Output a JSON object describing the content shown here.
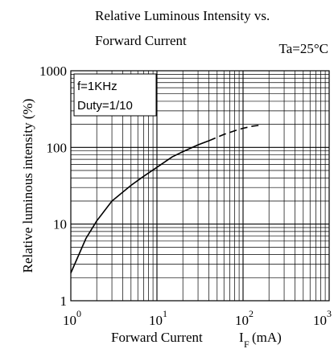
{
  "chart_data": {
    "type": "line",
    "title_line1": "Relative Luminous Intensity  vs.",
    "title_line2": "Forward Current",
    "condition": "Ta=25°C",
    "note_frequency": "f=1KHz",
    "note_duty": "Duty=1/10",
    "ylabel": "Relative luminous intensity (%)",
    "xlabel": "Forward Current",
    "xlabel_symbol": "I",
    "xlabel_subscript": "F",
    "xlabel_unit": "(mA)",
    "x_scale": "log",
    "y_scale": "log",
    "xlim": [
      1,
      1000
    ],
    "ylim": [
      1,
      1000
    ],
    "grid": true,
    "x_ticks": [
      {
        "value": 1,
        "base": "10",
        "exp": "0"
      },
      {
        "value": 10,
        "base": "10",
        "exp": "1"
      },
      {
        "value": 100,
        "base": "10",
        "exp": "2"
      },
      {
        "value": 1000,
        "base": "10",
        "exp": "3"
      }
    ],
    "y_ticks": [
      {
        "value": 1,
        "label": "1"
      },
      {
        "value": 10,
        "label": "10"
      },
      {
        "value": 100,
        "label": "100"
      },
      {
        "value": 1000,
        "label": "1000"
      }
    ],
    "series": [
      {
        "style": "solid",
        "color": "#000000",
        "x": [
          1,
          1.5,
          2,
          3,
          5,
          7,
          10,
          15,
          20,
          30,
          40
        ],
        "y": [
          2.3,
          6.5,
          11,
          20,
          32,
          42,
          55,
          75,
          88,
          108,
          122
        ]
      },
      {
        "style": "dashed",
        "color": "#000000",
        "x": [
          40,
          60,
          80,
          100,
          130,
          160
        ],
        "y": [
          122,
          148,
          165,
          178,
          190,
          195
        ]
      }
    ]
  }
}
